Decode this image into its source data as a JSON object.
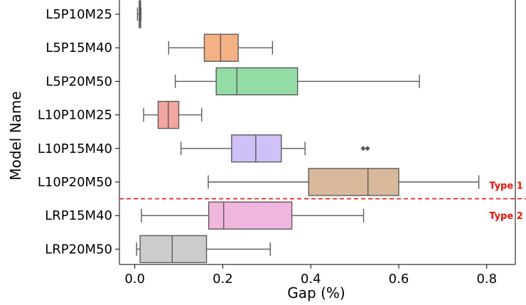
{
  "chart_data": {
    "type": "boxplot",
    "orientation": "horizontal",
    "xlabel": "Gap (%)",
    "ylabel": "Model Name",
    "xlim": [
      -0.035,
      0.865
    ],
    "xticks": [
      {
        "value": 0.0,
        "label": "0.0"
      },
      {
        "value": 0.2,
        "label": "0.2"
      },
      {
        "value": 0.4,
        "label": "0.4"
      },
      {
        "value": 0.6,
        "label": "0.6"
      },
      {
        "value": 0.8,
        "label": "0.8"
      }
    ],
    "grid": false,
    "categories": [
      "L5P10M25",
      "L5P15M40",
      "L5P20M50",
      "L10P10M25",
      "L10P15M40",
      "L10P20M50",
      "LRP15M40",
      "LRP20M50"
    ],
    "boxes": [
      {
        "category": "L5P10M25",
        "whisker_low": 0.006,
        "q1": 0.01,
        "median": 0.011,
        "q3": 0.013,
        "whisker_high": 0.014,
        "outliers": [],
        "color": "#7a7a7a"
      },
      {
        "category": "L5P15M40",
        "whisker_low": 0.077,
        "q1": 0.158,
        "median": 0.195,
        "q3": 0.235,
        "whisker_high": 0.313,
        "outliers": [],
        "color": "#f4b183"
      },
      {
        "category": "L5P20M50",
        "whisker_low": 0.092,
        "q1": 0.185,
        "median": 0.232,
        "q3": 0.37,
        "whisker_high": 0.647,
        "outliers": [],
        "color": "#93dca6"
      },
      {
        "category": "L10P10M25",
        "whisker_low": 0.02,
        "q1": 0.053,
        "median": 0.076,
        "q3": 0.1,
        "whisker_high": 0.152,
        "outliers": [],
        "color": "#f3a6a0"
      },
      {
        "category": "L10P15M40",
        "whisker_low": 0.105,
        "q1": 0.22,
        "median": 0.275,
        "q3": 0.333,
        "whisker_high": 0.387,
        "outliers": [
          0.519,
          0.529
        ],
        "color": "#cfc0f7"
      },
      {
        "category": "L10P20M50",
        "whisker_low": 0.167,
        "q1": 0.395,
        "median": 0.53,
        "q3": 0.6,
        "whisker_high": 0.782,
        "outliers": [],
        "color": "#d8b99b"
      },
      {
        "category": "LRP15M40",
        "whisker_low": 0.015,
        "q1": 0.168,
        "median": 0.202,
        "q3": 0.357,
        "whisker_high": 0.52,
        "outliers": [],
        "color": "#f1b6de"
      },
      {
        "category": "LRP20M50",
        "whisker_low": 0.004,
        "q1": 0.012,
        "median": 0.085,
        "q3": 0.163,
        "whisker_high": 0.308,
        "outliers": [],
        "color": "#cccccc"
      }
    ],
    "divider": {
      "after_category": "L10P20M50",
      "style": "dashed",
      "color": "#e8140a"
    },
    "annotations": [
      {
        "text": "Type 1",
        "near_category": "L10P20M50",
        "color": "#e8140a"
      },
      {
        "text": "Type 2",
        "near_category": "LRP15M40",
        "color": "#e8140a"
      }
    ]
  }
}
